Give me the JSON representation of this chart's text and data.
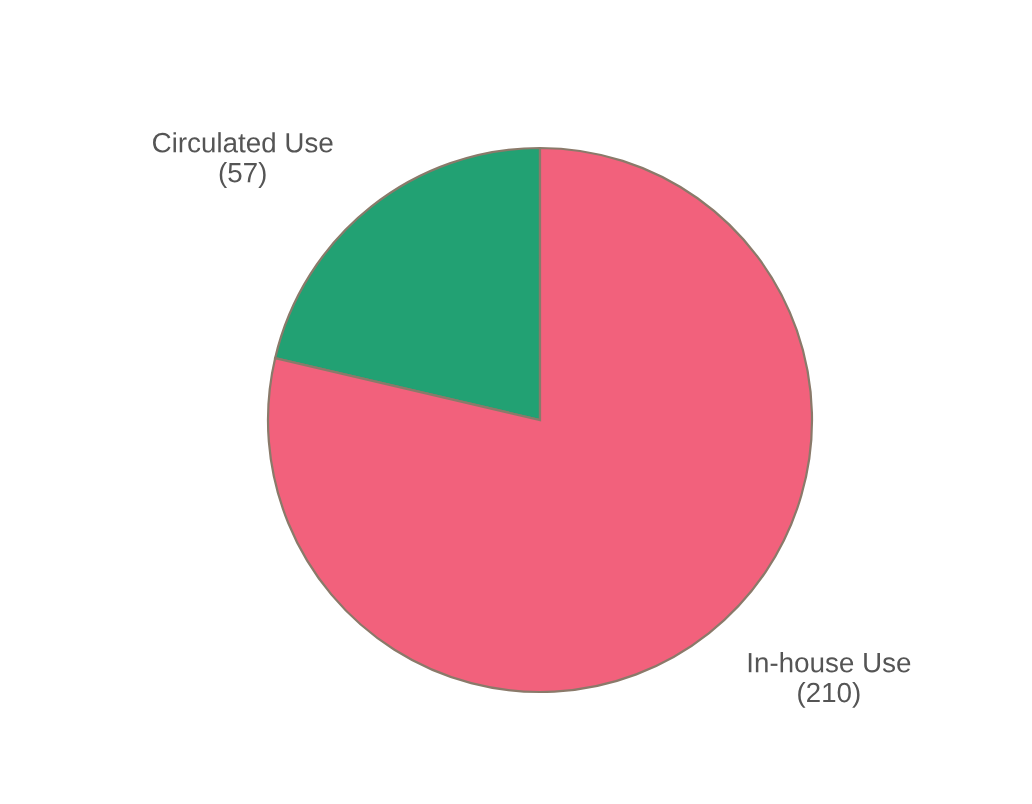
{
  "chart_data": {
    "type": "pie",
    "categories": [
      "Circulated Use",
      "In-house Use"
    ],
    "values": [
      57,
      210
    ],
    "value_labels": [
      "(57)",
      "(210)"
    ],
    "colors": [
      "#22a173",
      "#f2617c"
    ]
  }
}
